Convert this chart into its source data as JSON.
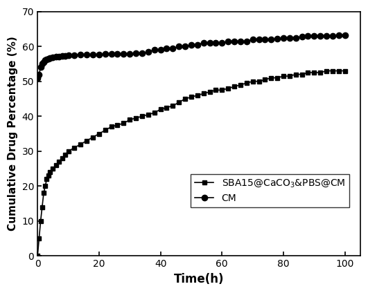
{
  "title": "",
  "xlabel": "Time(h)",
  "ylabel": "Cumulative Drug Percentage (%)",
  "xlim": [
    0,
    105
  ],
  "ylim": [
    0,
    70
  ],
  "xticks": [
    0,
    20,
    40,
    60,
    80,
    100
  ],
  "yticks": [
    0,
    10,
    20,
    30,
    40,
    50,
    60,
    70
  ],
  "series1_label": "SBA15@CaCO3&PBS@CM",
  "series2_label": "CM",
  "series1_x": [
    0,
    0.5,
    1,
    1.5,
    2,
    2.5,
    3,
    3.5,
    4,
    5,
    6,
    7,
    8,
    9,
    10,
    12,
    14,
    16,
    18,
    20,
    22,
    24,
    26,
    28,
    30,
    32,
    34,
    36,
    38,
    40,
    42,
    44,
    46,
    48,
    50,
    52,
    54,
    56,
    58,
    60,
    62,
    64,
    66,
    68,
    70,
    72,
    74,
    76,
    78,
    80,
    82,
    84,
    86,
    88,
    90,
    92,
    94,
    96,
    98,
    100
  ],
  "series1_y": [
    0,
    5,
    10,
    14,
    18,
    20,
    22,
    23,
    24,
    25,
    26,
    27,
    28,
    29,
    30,
    31,
    32,
    33,
    34,
    35,
    36,
    37,
    37.5,
    38,
    39,
    39.5,
    40,
    40.5,
    41,
    42,
    42.5,
    43,
    44,
    45,
    45.5,
    46,
    46.5,
    47,
    47.5,
    47.5,
    48,
    48.5,
    49,
    49.5,
    50,
    50,
    50.5,
    51,
    51,
    51.5,
    51.5,
    52,
    52,
    52.5,
    52.5,
    52.5,
    53,
    53,
    53,
    53
  ],
  "series2_x": [
    0,
    0.5,
    1,
    1.5,
    2,
    2.5,
    3,
    3.5,
    4,
    5,
    6,
    7,
    8,
    9,
    10,
    12,
    14,
    16,
    18,
    20,
    22,
    24,
    26,
    28,
    30,
    32,
    34,
    36,
    38,
    40,
    42,
    44,
    46,
    48,
    50,
    52,
    54,
    56,
    58,
    60,
    62,
    64,
    66,
    68,
    70,
    72,
    74,
    76,
    78,
    80,
    82,
    84,
    86,
    88,
    90,
    92,
    94,
    96,
    98,
    100
  ],
  "series2_y": [
    51,
    52,
    54,
    55,
    55.5,
    56,
    56.2,
    56.4,
    56.6,
    56.8,
    57,
    57.1,
    57.2,
    57.3,
    57.4,
    57.5,
    57.6,
    57.7,
    57.7,
    57.7,
    57.8,
    57.8,
    57.8,
    57.9,
    57.9,
    58,
    58,
    58.5,
    59,
    59,
    59.5,
    59.5,
    60,
    60,
    60.5,
    60.5,
    61,
    61,
    61,
    61,
    61.5,
    61.5,
    61.5,
    61.5,
    62,
    62,
    62,
    62,
    62.2,
    62.5,
    62.5,
    62.5,
    62.8,
    63,
    63,
    63,
    63,
    63,
    63.2,
    63.2
  ],
  "marker1": "s",
  "marker2": "o",
  "color1": "#000000",
  "color2": "#000000",
  "linewidth": 1.2,
  "markersize1": 5,
  "markersize2": 6,
  "figsize": [
    5.31,
    4.24
  ],
  "dpi": 100
}
